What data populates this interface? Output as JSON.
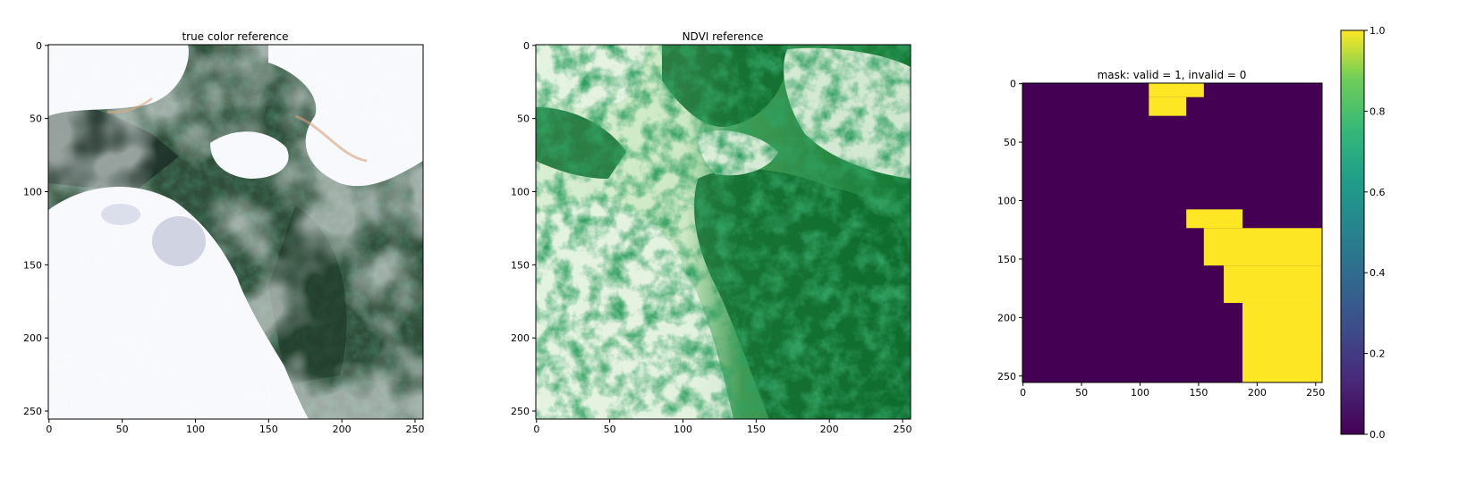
{
  "panels": [
    {
      "title": "true color reference",
      "xticks": [
        "0",
        "50",
        "100",
        "150",
        "200",
        "250"
      ],
      "yticks": [
        "0",
        "50",
        "100",
        "150",
        "200",
        "250"
      ]
    },
    {
      "title": "NDVI reference",
      "xticks": [
        "0",
        "50",
        "100",
        "150",
        "200",
        "250"
      ],
      "yticks": [
        "0",
        "50",
        "100",
        "150",
        "200",
        "250"
      ]
    },
    {
      "title": "mask: valid = 1, invalid = 0",
      "xticks": [
        "0",
        "50",
        "100",
        "150",
        "200",
        "250"
      ],
      "yticks": [
        "0",
        "50",
        "100",
        "150",
        "200",
        "250"
      ]
    }
  ],
  "colorbar": {
    "ticks": [
      "0.0",
      "0.2",
      "0.4",
      "0.6",
      "0.8",
      "1.0"
    ],
    "values": [
      0.0,
      0.2,
      0.4,
      0.6,
      0.8,
      1.0
    ],
    "colormap": "viridis"
  },
  "mask": {
    "extent": 256,
    "valid_color": "#fde725",
    "invalid_color": "#440154",
    "valid_regions": [
      {
        "x0": 108,
        "x1": 155,
        "y0": 0,
        "y1": 12
      },
      {
        "x0": 108,
        "x1": 140,
        "y0": 12,
        "y1": 28
      },
      {
        "x0": 140,
        "x1": 188,
        "y0": 108,
        "y1": 124
      },
      {
        "x0": 155,
        "x1": 256,
        "y0": 124,
        "y1": 156
      },
      {
        "x0": 172,
        "x1": 256,
        "y0": 156,
        "y1": 188
      },
      {
        "x0": 188,
        "x1": 256,
        "y0": 188,
        "y1": 256
      }
    ]
  },
  "colors": {
    "truecolor_cloud": "#f8f9fc",
    "truecolor_forest": "#2c4a36",
    "ndvi_light": "#e7f4e2",
    "ndvi_dark": "#0d6a2c"
  }
}
